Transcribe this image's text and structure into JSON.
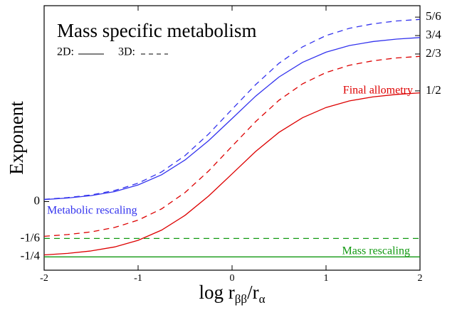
{
  "chart_data": {
    "type": "line",
    "title": "Mass specific metabolism",
    "xlabel": {
      "main": "log r",
      "sub1": "ββ",
      "mid": "/r",
      "sub2": "α"
    },
    "ylabel": "Exponent",
    "legend": {
      "solid": "2D:",
      "dashed": "3D:"
    },
    "x": [
      -2,
      -1.75,
      -1.5,
      -1.25,
      -1,
      -0.75,
      -0.5,
      -0.25,
      0,
      0.25,
      0.5,
      0.75,
      1,
      1.25,
      1.5,
      1.75,
      2
    ],
    "series": [
      {
        "name": "Metabolic rescaling",
        "color": "#3333ee",
        "dash": false,
        "values": [
          0.009,
          0.016,
          0.027,
          0.045,
          0.075,
          0.121,
          0.188,
          0.275,
          0.375,
          0.476,
          0.563,
          0.629,
          0.675,
          0.705,
          0.723,
          0.734,
          0.741
        ]
      },
      {
        "name": "Metabolic rescaling",
        "color": "#3333ee",
        "dash": true,
        "values": [
          0.01,
          0.018,
          0.03,
          0.05,
          0.083,
          0.134,
          0.208,
          0.305,
          0.417,
          0.528,
          0.625,
          0.699,
          0.75,
          0.783,
          0.803,
          0.816,
          0.823
        ]
      },
      {
        "name": "Final allometry",
        "color": "#dd0000",
        "dash": false,
        "values": [
          -0.241,
          -0.234,
          -0.223,
          -0.205,
          -0.175,
          -0.129,
          -0.062,
          0.025,
          0.125,
          0.226,
          0.313,
          0.379,
          0.425,
          0.455,
          0.473,
          0.484,
          0.491
        ]
      },
      {
        "name": "Final allometry",
        "color": "#dd0000",
        "dash": true,
        "values": [
          -0.157,
          -0.149,
          -0.137,
          -0.117,
          -0.084,
          -0.033,
          0.041,
          0.138,
          0.25,
          0.361,
          0.458,
          0.532,
          0.583,
          0.616,
          0.636,
          0.649,
          0.656
        ]
      },
      {
        "name": "Mass rescaling",
        "color": "#119911",
        "dash": false,
        "values": [
          -0.25,
          -0.25,
          -0.25,
          -0.25,
          -0.25,
          -0.25,
          -0.25,
          -0.25,
          -0.25,
          -0.25,
          -0.25,
          -0.25,
          -0.25,
          -0.25,
          -0.25,
          -0.25,
          -0.25
        ]
      },
      {
        "name": "Mass rescaling",
        "color": "#119911",
        "dash": true,
        "values": [
          -0.1667,
          -0.1667,
          -0.1667,
          -0.1667,
          -0.1667,
          -0.1667,
          -0.1667,
          -0.1667,
          -0.1667,
          -0.1667,
          -0.1667,
          -0.1667,
          -0.1667,
          -0.1667,
          -0.1667,
          -0.1667,
          -0.1667
        ]
      }
    ],
    "xlim": [
      -2,
      2
    ],
    "xticks": [
      -2,
      -1,
      0,
      1,
      2
    ],
    "ylim": [
      -0.31,
      0.885
    ],
    "yticks": [
      0,
      {
        "value": -0.1667,
        "label": "-1/6"
      },
      {
        "value": -0.25,
        "label": "-1/4"
      }
    ],
    "y2lim": [
      -0.31,
      0.885
    ],
    "y2ticks": [
      {
        "value": 0.8333,
        "label": "5/6"
      },
      {
        "value": 0.75,
        "label": "3/4"
      },
      {
        "value": 0.6667,
        "label": "2/3"
      },
      {
        "value": 0.5,
        "label": "1/2"
      }
    ]
  }
}
